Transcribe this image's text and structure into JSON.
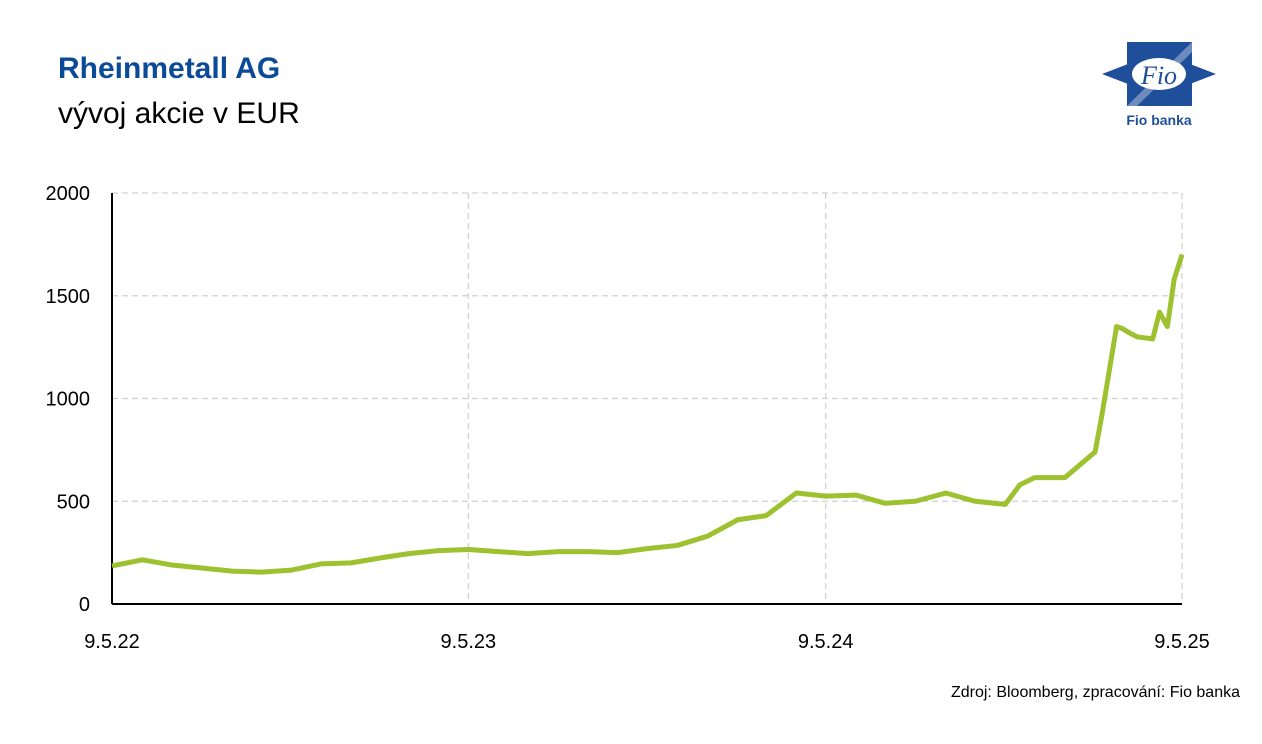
{
  "header": {
    "logo_mark": "Fio",
    "logo_text": "Fio banka"
  },
  "source": "Zdroj: Bloomberg, zpracování: Fio banka",
  "chart_data": {
    "type": "line",
    "title": "Rheinmetall AG",
    "subtitle": "vývoj akcie v EUR",
    "x": [
      "9.5.22",
      "9.6.22",
      "9.7.22",
      "9.8.22",
      "9.9.22",
      "9.10.22",
      "9.11.22",
      "9.12.22",
      "9.1.23",
      "9.2.23",
      "9.3.23",
      "9.4.23",
      "9.5.23",
      "9.6.23",
      "9.7.23",
      "9.8.23",
      "9.9.23",
      "9.10.23",
      "9.11.23",
      "9.12.23",
      "9.1.24",
      "9.2.24",
      "9.3.24",
      "9.4.24",
      "9.5.24",
      "9.6.24",
      "9.7.24",
      "9.8.24",
      "9.9.24",
      "9.10.24",
      "9.11.24",
      "24.11.24",
      "9.12.24",
      "9.1.25",
      "9.2.25",
      "16.2.25",
      "24.2.25",
      "3.3.25",
      "9.3.25",
      "16.3.25",
      "24.3.25",
      "9.4.25",
      "16.4.25",
      "24.4.25",
      "1.5.25",
      "9.5.25"
    ],
    "series": [
      {
        "name": "Rheinmetall AG",
        "color": "#9dc12f",
        "values": [
          185,
          215,
          190,
          175,
          160,
          155,
          165,
          195,
          200,
          225,
          245,
          260,
          265,
          255,
          245,
          255,
          255,
          250,
          270,
          285,
          330,
          410,
          430,
          540,
          525,
          530,
          490,
          500,
          540,
          500,
          485,
          580,
          615,
          615,
          740,
          920,
          1150,
          1350,
          1340,
          1320,
          1300,
          1290,
          1420,
          1350,
          1580,
          1700
        ]
      }
    ],
    "xlim": [
      "9.5.22",
      "9.5.25"
    ],
    "xticks": [
      "9.5.22",
      "9.5.23",
      "9.5.24",
      "9.5.25"
    ],
    "ylim": [
      0,
      2000
    ],
    "yticks": [
      0,
      500,
      1000,
      1500,
      2000
    ],
    "grid": true
  }
}
